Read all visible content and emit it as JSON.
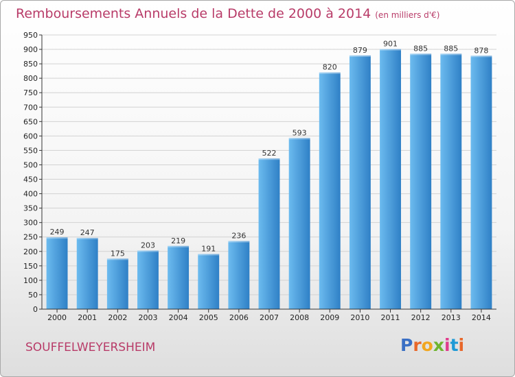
{
  "chart_data": {
    "type": "bar",
    "title": "Remboursements Annuels de la Dette de 2000 à 2014",
    "subtitle": "(en milliers d'€)",
    "categories": [
      "2000",
      "2001",
      "2002",
      "2003",
      "2004",
      "2005",
      "2006",
      "2007",
      "2008",
      "2009",
      "2010",
      "2011",
      "2012",
      "2013",
      "2014"
    ],
    "values": [
      249,
      247,
      175,
      203,
      219,
      191,
      236,
      522,
      593,
      820,
      879,
      901,
      885,
      885,
      878
    ],
    "ylim": [
      0,
      950
    ],
    "yticks": [
      0,
      50,
      100,
      150,
      200,
      250,
      300,
      350,
      400,
      450,
      500,
      550,
      600,
      650,
      700,
      750,
      800,
      850,
      900,
      950
    ],
    "grid": true,
    "xlabel": "",
    "ylabel": ""
  },
  "commune": "SOUFFELWEYERSHEIM",
  "logo": {
    "text": "Proxiti",
    "letter_colors": [
      "#3a6fc4",
      "#e8672a",
      "#f2a61f",
      "#6eb52f",
      "#e03c8c",
      "#1f9ad6",
      "#e8672a"
    ]
  },
  "colors": {
    "bar_light": "#6cbbef",
    "bar_dark": "#2f80c6",
    "accent": "#b83b68",
    "grid": "#d2d2d2"
  }
}
